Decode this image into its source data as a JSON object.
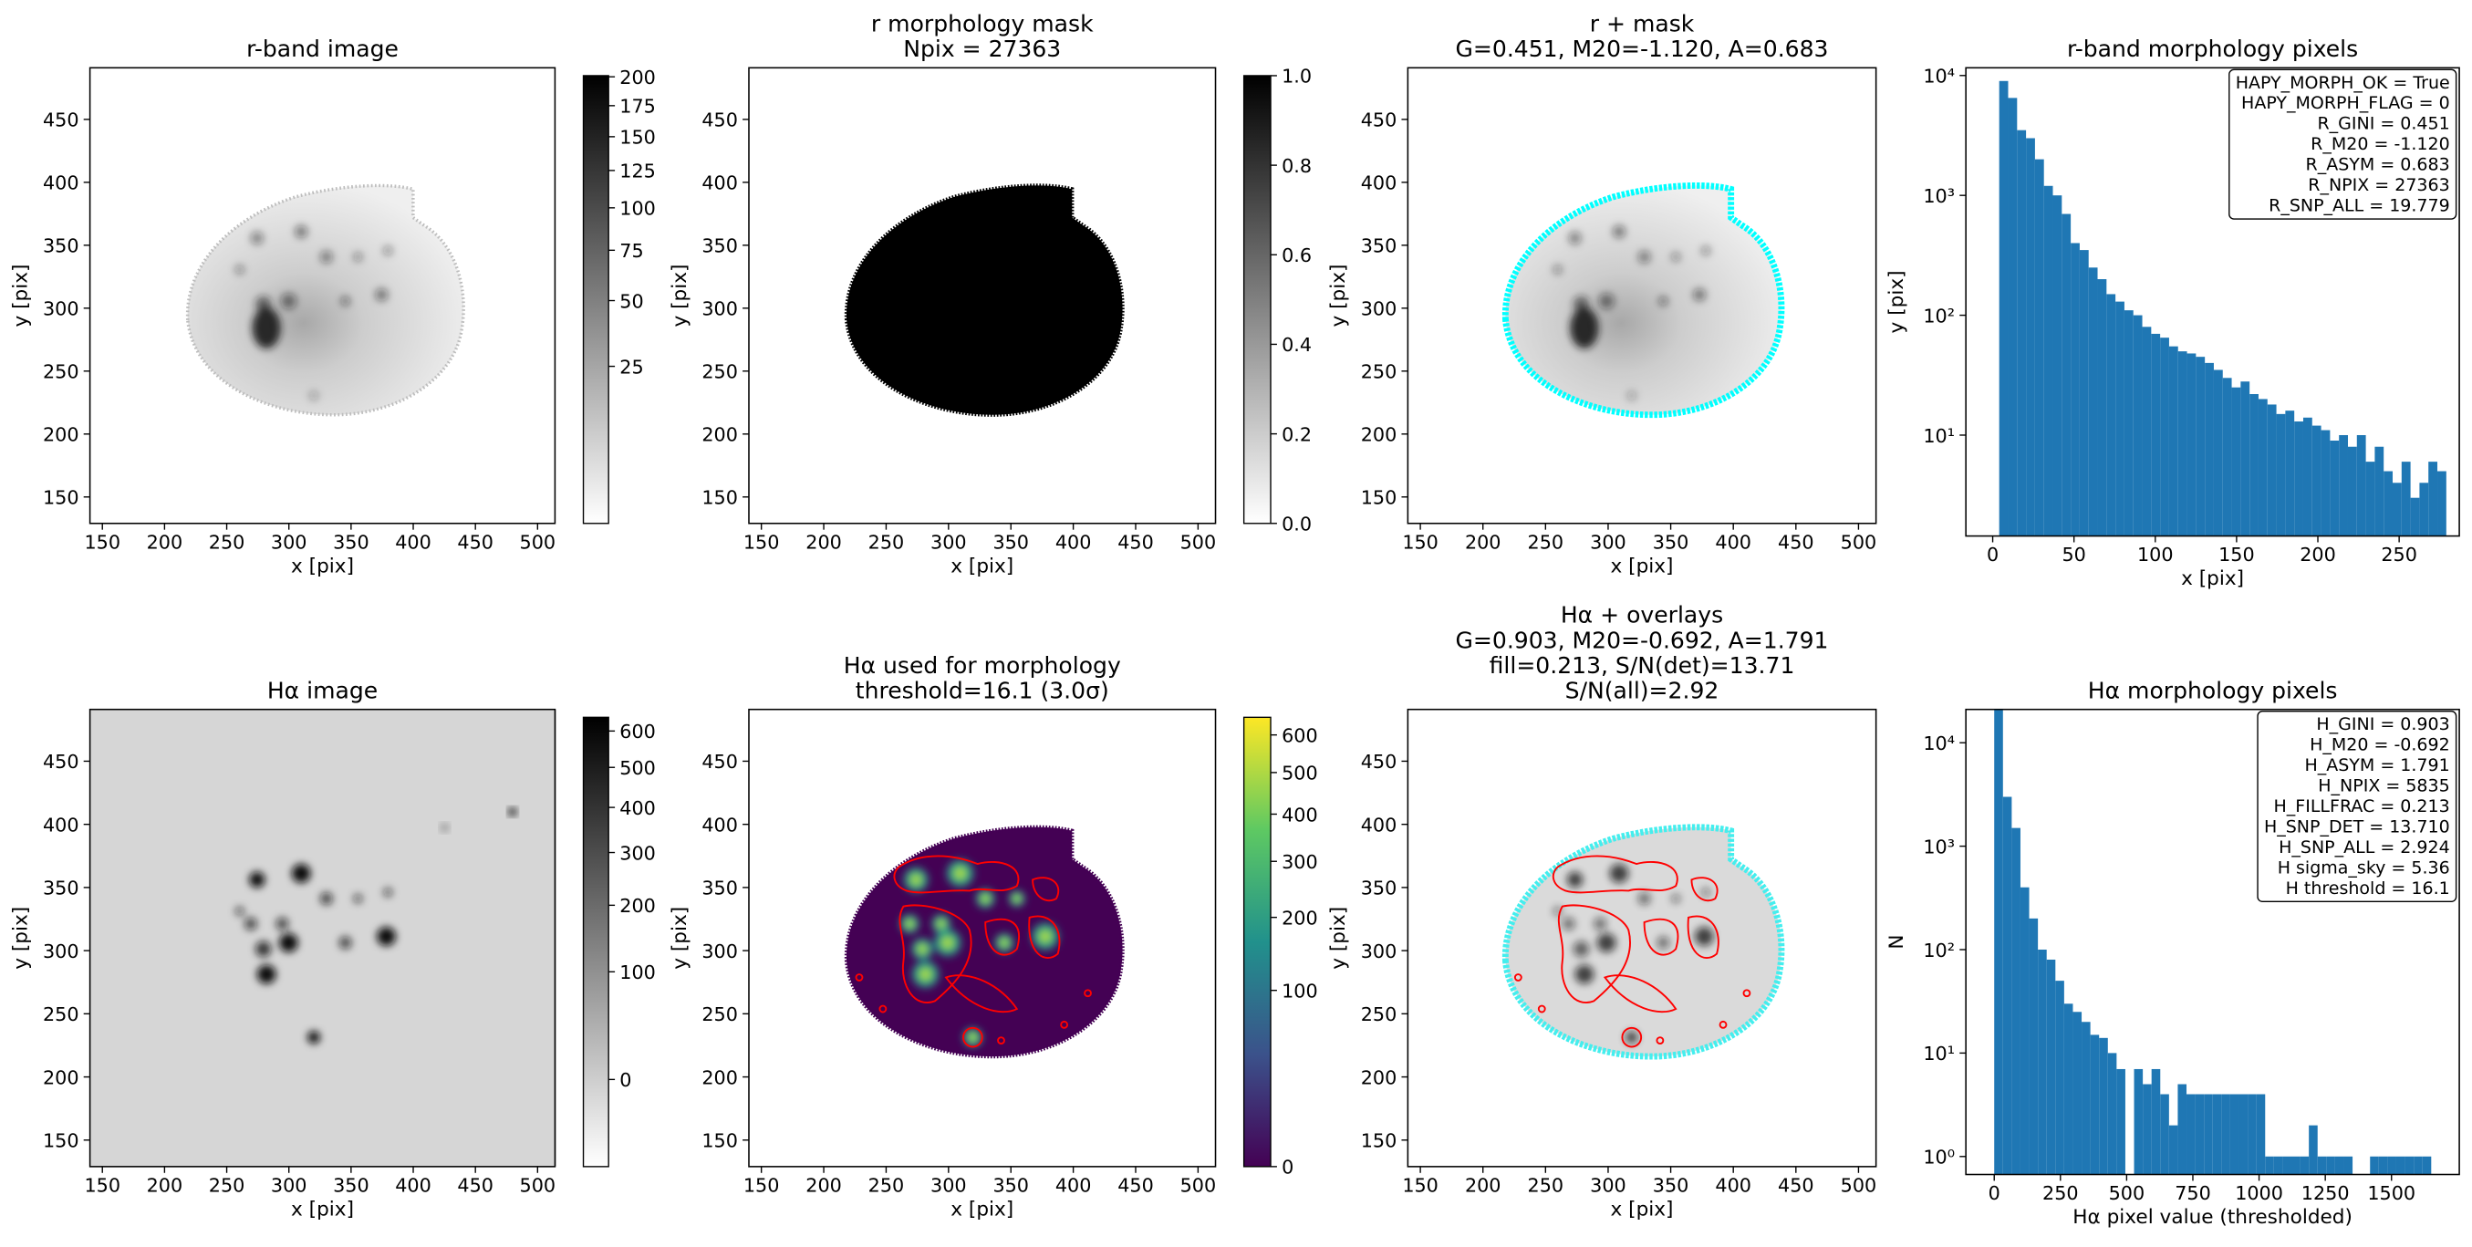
{
  "chart_data": [
    {
      "type": "image",
      "title": [
        "r-band image"
      ],
      "xlabel": "x [pix]",
      "ylabel": "y [pix]",
      "xlim": [
        140,
        514
      ],
      "ylim": [
        129,
        491
      ],
      "xticks": [
        150,
        200,
        250,
        300,
        350,
        400,
        450,
        500
      ],
      "yticks": [
        150,
        200,
        250,
        300,
        350,
        400,
        450
      ],
      "colorbar": {
        "cmap": "gray_r",
        "scale": "sqrt",
        "lim": [
          0.3,
          201
        ],
        "ticks": [
          25,
          50,
          75,
          100,
          125,
          150,
          175,
          200
        ]
      }
    },
    {
      "type": "image",
      "title": [
        "r morphology mask",
        "Npix = 27363"
      ],
      "xlabel": "x [pix]",
      "ylabel": "y [pix]",
      "xlim": [
        140,
        514
      ],
      "ylim": [
        129,
        491
      ],
      "xticks": [
        150,
        200,
        250,
        300,
        350,
        400,
        450,
        500
      ],
      "yticks": [
        150,
        200,
        250,
        300,
        350,
        400,
        450
      ],
      "colorbar": {
        "cmap": "gray_r",
        "scale": "linear",
        "lim": [
          0,
          1
        ],
        "ticks": [
          {
            "value": 0,
            "label": "0.0"
          },
          0.2,
          0.4,
          0.6,
          0.8,
          {
            "value": 1,
            "label": "1.0"
          }
        ]
      }
    },
    {
      "type": "image",
      "title": [
        "r + mask",
        "G=0.451, M20=-1.120, A=0.683"
      ],
      "xlabel": "x [pix]",
      "ylabel": "y [pix]",
      "xlim": [
        140,
        514
      ],
      "ylim": [
        129,
        491
      ],
      "xticks": [
        150,
        200,
        250,
        300,
        350,
        400,
        450,
        500
      ],
      "yticks": [
        150,
        200,
        250,
        300,
        350,
        400,
        450
      ]
    },
    {
      "type": "histogram",
      "title": [
        "r-band morphology pixels"
      ],
      "xlabel": "x [pix]",
      "ylabel": "y [pix]",
      "color": "#1f77b4",
      "log_y": true,
      "bins": [
        4,
        9.5,
        15,
        20.5,
        26,
        31.5,
        37,
        42.5,
        48,
        53.5,
        59,
        64.5,
        70,
        75.5,
        81,
        86.5,
        92,
        97.5,
        103,
        108.5,
        114,
        119.5,
        125,
        130.5,
        136,
        141.5,
        147,
        152.5,
        158,
        163.5,
        169,
        174.5,
        180,
        185.5,
        191,
        196.5,
        202,
        207.5,
        213,
        218.5,
        224,
        229.5,
        235,
        240.5,
        246,
        251.5,
        257,
        262.5,
        268,
        273.5,
        279
      ],
      "values": [
        9000,
        6500,
        3500,
        3000,
        2000,
        1200,
        1000,
        700,
        400,
        350,
        250,
        200,
        150,
        130,
        110,
        100,
        80,
        70,
        65,
        55,
        50,
        48,
        45,
        40,
        35,
        30,
        25,
        28,
        22,
        20,
        18,
        15,
        16,
        13,
        14,
        12,
        11,
        9,
        10,
        8,
        10,
        6,
        8,
        5,
        4,
        6,
        3,
        4,
        6,
        5
      ],
      "xlim": [
        -16.5,
        287
      ],
      "ylim": [
        1.44,
        11600
      ],
      "xticks": [
        0,
        50,
        100,
        150,
        200,
        250
      ],
      "yticks": [
        {
          "value": 10,
          "label": "10¹"
        },
        {
          "value": 100,
          "label": "10²"
        },
        {
          "value": 1000,
          "label": "10³"
        },
        {
          "value": 10000,
          "label": "10⁴"
        }
      ],
      "annotation": [
        "HAPY_MORPH_OK = True",
        "HAPY_MORPH_FLAG = 0",
        "R_GINI = 0.451",
        "R_M20 = -1.120",
        "R_ASYM = 0.683",
        "R_NPIX = 27363",
        "R_SNP_ALL = 19.779"
      ]
    },
    {
      "type": "image",
      "title": [
        "Hα image"
      ],
      "xlabel": "x [pix]",
      "ylabel": "y [pix]",
      "xlim": [
        140,
        514
      ],
      "ylim": [
        129,
        491
      ],
      "xticks": [
        150,
        200,
        250,
        300,
        350,
        400,
        450,
        500
      ],
      "yticks": [
        150,
        200,
        250,
        300,
        350,
        400,
        450
      ],
      "colorbar": {
        "cmap": "gray_r",
        "scale": "sqrt",
        "lim": [
          -25,
          640
        ],
        "ticks": [
          0,
          100,
          200,
          300,
          400,
          500,
          600
        ]
      }
    },
    {
      "type": "image",
      "title": [
        "Hα used for morphology",
        "threshold=16.1 (3.0σ)"
      ],
      "xlabel": "x [pix]",
      "ylabel": "y [pix]",
      "xlim": [
        140,
        514
      ],
      "ylim": [
        129,
        491
      ],
      "xticks": [
        150,
        200,
        250,
        300,
        350,
        400,
        450,
        500
      ],
      "yticks": [
        150,
        200,
        250,
        300,
        350,
        400,
        450
      ],
      "colorbar": {
        "cmap": "viridis",
        "scale": "sqrt",
        "lim": [
          0,
          650
        ],
        "ticks": [
          0,
          100,
          200,
          300,
          400,
          500,
          600
        ]
      }
    },
    {
      "type": "image",
      "title": [
        "Hα + overlays",
        "G=0.903, M20=-0.692, A=1.791",
        "fill=0.213, S/N(det)=13.71",
        "S/N(all)=2.92"
      ],
      "xlabel": "x [pix]",
      "ylabel": "y [pix]",
      "xlim": [
        140,
        514
      ],
      "ylim": [
        129,
        491
      ],
      "xticks": [
        150,
        200,
        250,
        300,
        350,
        400,
        450,
        500
      ],
      "yticks": [
        150,
        200,
        250,
        300,
        350,
        400,
        450
      ]
    },
    {
      "type": "histogram",
      "title": [
        "Hα morphology pixels"
      ],
      "xlabel": "Hα pixel value (thresholded)",
      "ylabel": "N",
      "color": "#1f77b4",
      "log_y": true,
      "bins": [
        0,
        33,
        66,
        99,
        132,
        165,
        198,
        231,
        264,
        297,
        330,
        363,
        396,
        429,
        462,
        495,
        528,
        561,
        594,
        627,
        660,
        693,
        726,
        759,
        792,
        825,
        858,
        891,
        924,
        957,
        990,
        1023,
        1056,
        1089,
        1122,
        1155,
        1188,
        1221,
        1254,
        1287,
        1320,
        1353,
        1386,
        1419,
        1452,
        1485,
        1518,
        1551,
        1584,
        1617,
        1650
      ],
      "values": [
        25000,
        3000,
        1500,
        400,
        200,
        100,
        80,
        50,
        30,
        25,
        20,
        15,
        14,
        10,
        7,
        0,
        7,
        5,
        7,
        4,
        2,
        5,
        4,
        4,
        4,
        4,
        4,
        4,
        4,
        4,
        4,
        1,
        1,
        1,
        1,
        1,
        2,
        1,
        1,
        1,
        1,
        0,
        0,
        1,
        1,
        1,
        1,
        1,
        1,
        1
      ],
      "xlim": [
        -107,
        1756
      ],
      "ylim": [
        0.67,
        21000
      ],
      "xticks": [
        0,
        250,
        500,
        750,
        1000,
        1250,
        1500
      ],
      "yticks": [
        {
          "value": 1,
          "label": "10⁰"
        },
        {
          "value": 10,
          "label": "10¹"
        },
        {
          "value": 100,
          "label": "10²"
        },
        {
          "value": 1000,
          "label": "10³"
        },
        {
          "value": 10000,
          "label": "10⁴"
        }
      ],
      "annotation": [
        "H_GINI = 0.903",
        "H_M20 = -0.692",
        "H_ASYM = 1.791",
        "H_NPIX = 5835",
        "H_FILLFRAC = 0.213",
        "H_SNP_DET = 13.710",
        "H_SNP_ALL = 2.924",
        "H sigma_sky = 5.36",
        "H threshold = 16.1"
      ]
    }
  ]
}
